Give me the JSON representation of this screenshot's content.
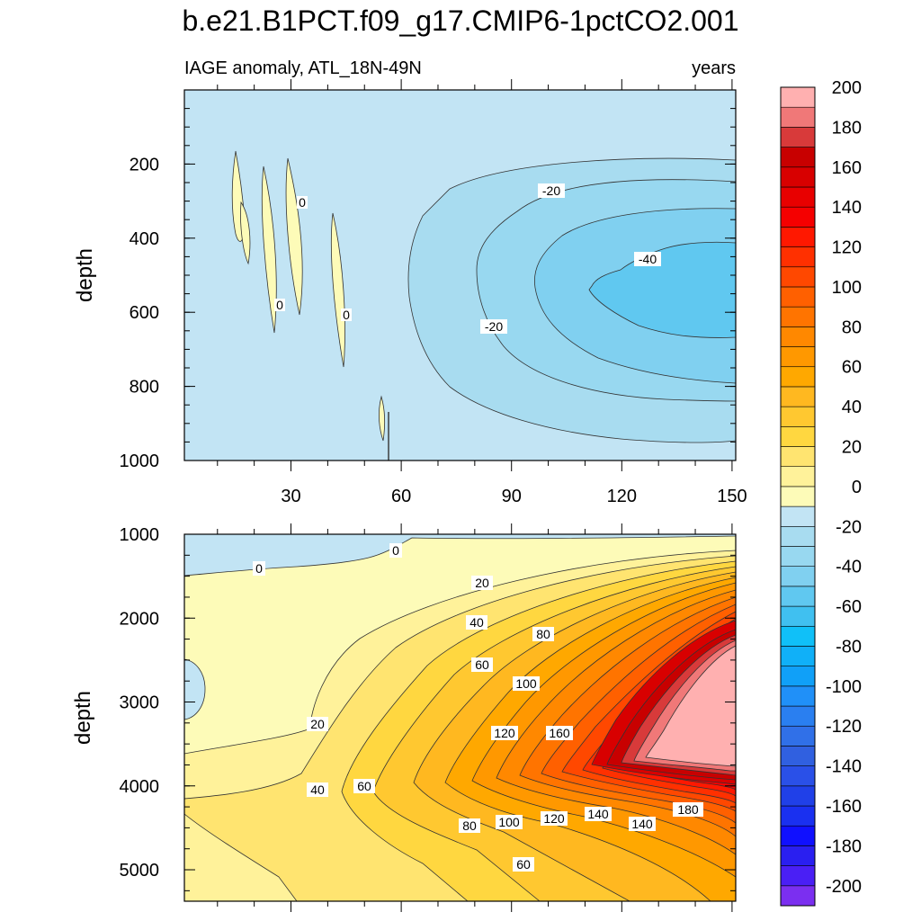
{
  "title": "b.e21.B1PCT.f09_g17.CMIP6-1pctCO2.001",
  "chart_data": {
    "type": "heatmap",
    "title": "b.e21.B1PCT.f09_g17.CMIP6-1pctCO2.001",
    "variable_label": "IAGE anomaly, ATL_18N-49N",
    "units_label": "years",
    "xaxis": {
      "ticks": [
        30,
        60,
        90,
        120,
        150
      ],
      "tick_labels": [
        "30",
        "60",
        "90",
        "120",
        "150"
      ],
      "range": [
        1,
        151
      ]
    },
    "panels": [
      {
        "name": "upper",
        "ylabel": "depth",
        "yrange": [
          0,
          1000
        ],
        "yticks": [
          200,
          400,
          600,
          800,
          1000
        ],
        "ytick_labels": [
          "200",
          "400",
          "600",
          "800",
          "1000"
        ],
        "contour_labels": [
          "0",
          "0",
          "0",
          "-20",
          "-20",
          "-40"
        ]
      },
      {
        "name": "lower",
        "ylabel": "depth",
        "yrange": [
          1000,
          5375
        ],
        "yticks": [
          1000,
          2000,
          3000,
          4000,
          5000
        ],
        "ytick_labels": [
          "1000",
          "2000",
          "3000",
          "4000",
          "5000"
        ],
        "contour_labels": [
          "0",
          "0",
          "20",
          "20",
          "40",
          "40",
          "60",
          "60",
          "60",
          "80",
          "80",
          "100",
          "100",
          "120",
          "120",
          "140",
          "140",
          "160",
          "180"
        ]
      }
    ],
    "colorbar": {
      "levels": [
        -200,
        -190,
        -180,
        -170,
        -160,
        -150,
        -140,
        -130,
        -120,
        -110,
        -100,
        -90,
        -80,
        -70,
        -60,
        -50,
        -40,
        -30,
        -20,
        -10,
        0,
        10,
        20,
        30,
        40,
        50,
        60,
        70,
        80,
        90,
        100,
        110,
        120,
        130,
        140,
        150,
        160,
        170,
        180,
        190,
        200
      ],
      "labels": [
        "-200",
        "-180",
        "-160",
        "-140",
        "-120",
        "-100",
        "-80",
        "-60",
        "-40",
        "-20",
        "0",
        "20",
        "40",
        "60",
        "80",
        "100",
        "120",
        "140",
        "160",
        "180",
        "200"
      ],
      "colors": [
        "#7b2ff0",
        "#4a1ff5",
        "#2a1ff0",
        "#1010ff",
        "#1a30f0",
        "#2040e8",
        "#2a50e8",
        "#3060e0",
        "#3070e8",
        "#2a7ff0",
        "#2090f8",
        "#10a0f8",
        "#10b0f8",
        "#10c0f8",
        "#40c0f0",
        "#60c8f0",
        "#80d0f0",
        "#98d8f0",
        "#a8dcf0",
        "#c2e4f4",
        "#fdfbb8",
        "#fff29a",
        "#ffe470",
        "#ffd740",
        "#ffc830",
        "#ffb820",
        "#ffa800",
        "#ff9800",
        "#ff8800",
        "#ff7400",
        "#ff6000",
        "#ff4800",
        "#ff3000",
        "#ff1800",
        "#f50000",
        "#e80000",
        "#d80000",
        "#c80000",
        "#d83a3a",
        "#f07878",
        "#ffb0b0"
      ]
    }
  }
}
